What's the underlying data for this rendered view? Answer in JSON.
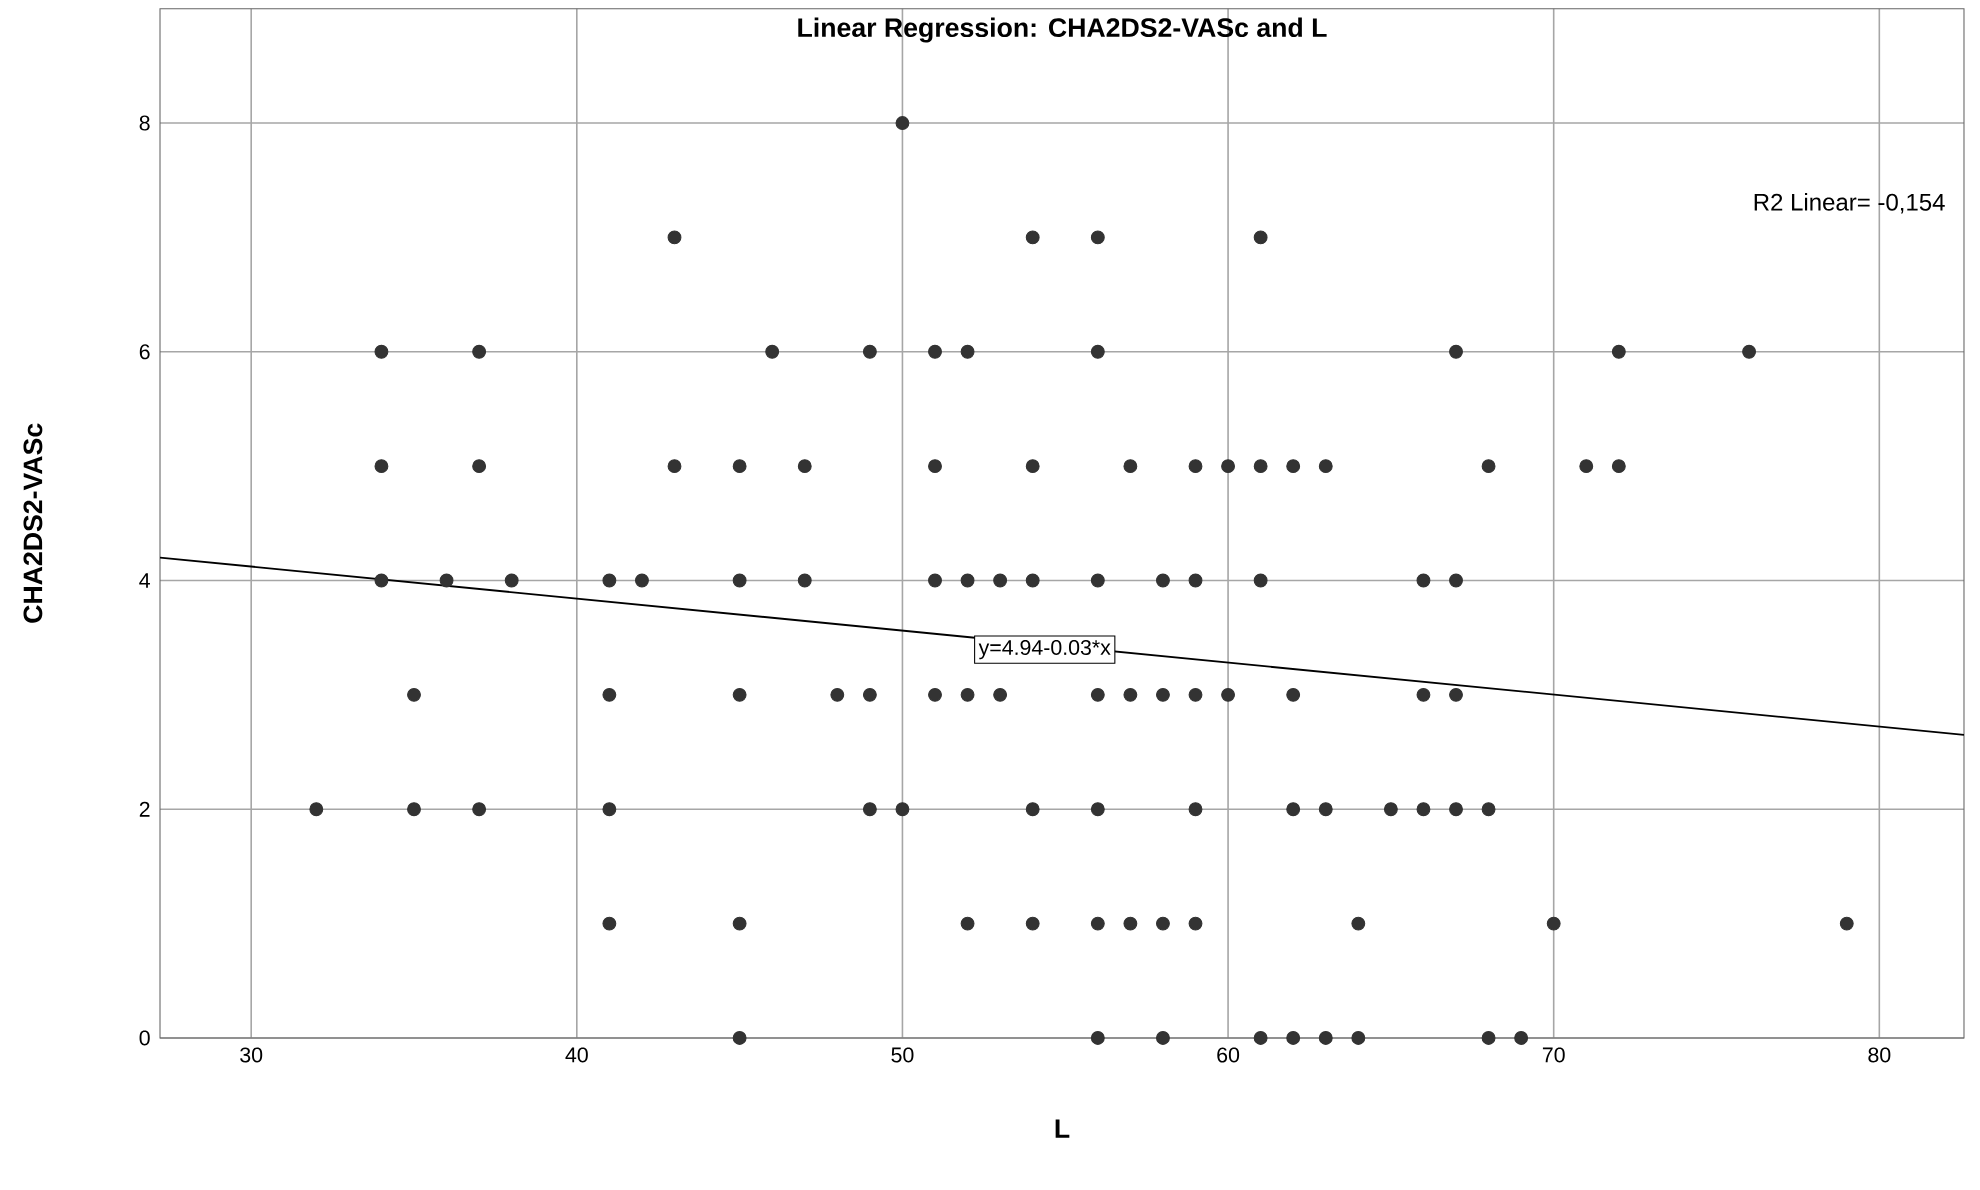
{
  "chart_data": {
    "type": "scatter",
    "title": "Linear Regression: CHA2DS2-VASc and L",
    "xlabel": "L",
    "ylabel": "CHA2DS2-VASc",
    "xlim": [
      27.2,
      82.6
    ],
    "ylim": [
      0,
      9
    ],
    "xticks": [
      30,
      40,
      50,
      60,
      70,
      80
    ],
    "yticks": [
      0,
      2,
      4,
      6,
      8
    ],
    "grid": true,
    "series": [
      {
        "color": "#333333",
        "marker": "circle",
        "x": [
          50,
          43,
          54,
          56,
          61,
          34,
          37,
          46,
          49,
          51,
          52,
          56,
          67,
          72,
          76,
          34,
          37,
          43,
          45,
          47,
          51,
          54,
          57,
          59,
          60,
          61,
          62,
          63,
          68,
          71,
          72,
          34,
          36,
          38,
          41,
          42,
          45,
          47,
          51,
          52,
          53,
          54,
          56,
          58,
          59,
          61,
          66,
          67,
          35,
          41,
          45,
          48,
          49,
          51,
          52,
          53,
          56,
          57,
          58,
          59,
          60,
          62,
          66,
          67,
          32,
          35,
          37,
          41,
          49,
          50,
          54,
          56,
          59,
          62,
          63,
          65,
          66,
          67,
          68,
          41,
          45,
          52,
          54,
          56,
          57,
          58,
          59,
          64,
          70,
          79,
          45,
          56,
          58,
          61,
          62,
          63,
          64,
          68,
          69
        ],
        "values": [
          8,
          7,
          7,
          7,
          7,
          6,
          6,
          6,
          6,
          6,
          6,
          6,
          6,
          6,
          6,
          5,
          5,
          5,
          5,
          5,
          5,
          5,
          5,
          5,
          5,
          5,
          5,
          5,
          5,
          5,
          5,
          4,
          4,
          4,
          4,
          4,
          4,
          4,
          4,
          4,
          4,
          4,
          4,
          4,
          4,
          4,
          4,
          4,
          3,
          3,
          3,
          3,
          3,
          3,
          3,
          3,
          3,
          3,
          3,
          3,
          3,
          3,
          3,
          3,
          2,
          2,
          2,
          2,
          2,
          2,
          2,
          2,
          2,
          2,
          2,
          2,
          2,
          2,
          2,
          1,
          1,
          1,
          1,
          1,
          1,
          1,
          1,
          1,
          1,
          1,
          0,
          0,
          0,
          0,
          0,
          0,
          0,
          0,
          0
        ]
      },
      {
        "type": "line",
        "color": "#000000",
        "marker": "none",
        "x": [
          27.2,
          82.6
        ],
        "values": [
          4.2,
          2.65
        ]
      }
    ],
    "annotations": [
      "R2 Linear= -0,154",
      {
        "text": "y=4.94-0.03*x",
        "x": 52.2,
        "y": 3.52
      }
    ]
  }
}
